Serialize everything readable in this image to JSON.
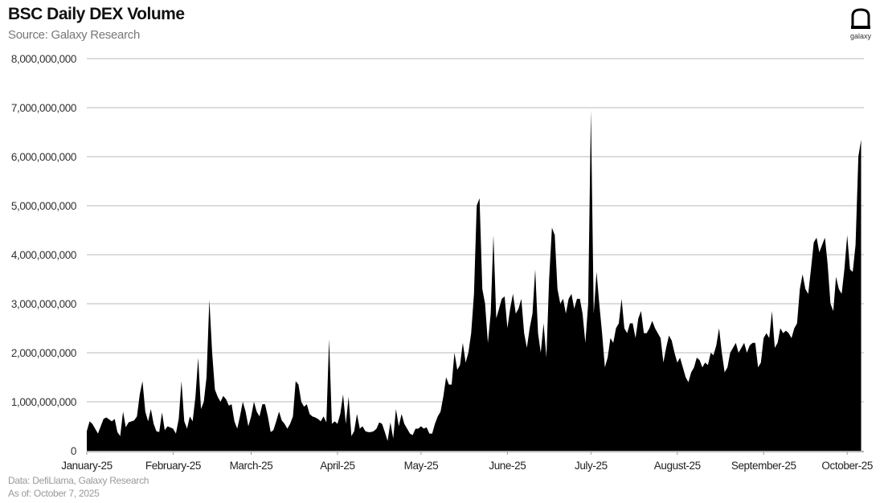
{
  "header": {
    "title": "BSC Daily DEX Volume",
    "subtitle": "Source: Galaxy Research"
  },
  "logo": {
    "text": "galaxy"
  },
  "footer": {
    "data_source": "Data: DefiLlama, Galaxy Research",
    "as_of": "As of: October 7, 2025"
  },
  "colors": {
    "fill": "#000000",
    "grid": "#c8c8c8",
    "axis": "#999999"
  },
  "chart_data": {
    "type": "area",
    "title": "BSC Daily DEX Volume",
    "subtitle": "Source: Galaxy Research",
    "xlabel": "",
    "ylabel": "",
    "ylim": [
      0,
      8000000000
    ],
    "yticks": [
      0,
      1000000000,
      2000000000,
      3000000000,
      4000000000,
      5000000000,
      6000000000,
      7000000000,
      8000000000
    ],
    "ytick_labels": [
      "0",
      "1,000,000,000",
      "2,000,000,000",
      "3,000,000,000",
      "4,000,000,000",
      "5,000,000,000",
      "6,000,000,000",
      "7,000,000,000",
      "8,000,000,000"
    ],
    "xtick_labels": [
      "January-25",
      "February-25",
      "March-25",
      "April-25",
      "May-25",
      "June-25",
      "July-25",
      "August-25",
      "September-25",
      "October-25"
    ],
    "xtick_day_index": [
      0,
      31,
      59,
      90,
      120,
      151,
      181,
      212,
      243,
      273
    ],
    "x_range_days": [
      0,
      279
    ],
    "grid": true,
    "legend": null,
    "series": [
      {
        "name": "BSC Daily DEX Volume",
        "points_day_value": [
          [
            0,
            400000000
          ],
          [
            1,
            600000000
          ],
          [
            2,
            550000000
          ],
          [
            4,
            350000000
          ],
          [
            6,
            650000000
          ],
          [
            7,
            680000000
          ],
          [
            9,
            600000000
          ],
          [
            10,
            650000000
          ],
          [
            11,
            380000000
          ],
          [
            12,
            300000000
          ],
          [
            13,
            800000000
          ],
          [
            14,
            480000000
          ],
          [
            15,
            580000000
          ],
          [
            17,
            620000000
          ],
          [
            18,
            700000000
          ],
          [
            19,
            1150000000
          ],
          [
            20,
            1420000000
          ],
          [
            21,
            800000000
          ],
          [
            22,
            600000000
          ],
          [
            23,
            850000000
          ],
          [
            24,
            550000000
          ],
          [
            25,
            400000000
          ],
          [
            26,
            380000000
          ],
          [
            27,
            780000000
          ],
          [
            28,
            420000000
          ],
          [
            29,
            500000000
          ],
          [
            31,
            450000000
          ],
          [
            32,
            350000000
          ],
          [
            33,
            650000000
          ],
          [
            34,
            1420000000
          ],
          [
            35,
            600000000
          ],
          [
            36,
            450000000
          ],
          [
            37,
            700000000
          ],
          [
            38,
            600000000
          ],
          [
            39,
            1100000000
          ],
          [
            40,
            1900000000
          ],
          [
            41,
            850000000
          ],
          [
            42,
            1000000000
          ],
          [
            43,
            1500000000
          ],
          [
            44,
            3080000000
          ],
          [
            45,
            2000000000
          ],
          [
            46,
            1250000000
          ],
          [
            47,
            1100000000
          ],
          [
            48,
            1000000000
          ],
          [
            49,
            1120000000
          ],
          [
            50,
            1050000000
          ],
          [
            51,
            920000000
          ],
          [
            52,
            950000000
          ],
          [
            53,
            600000000
          ],
          [
            54,
            450000000
          ],
          [
            55,
            700000000
          ],
          [
            56,
            1000000000
          ],
          [
            57,
            800000000
          ],
          [
            58,
            500000000
          ],
          [
            59,
            700000000
          ],
          [
            60,
            1000000000
          ],
          [
            61,
            800000000
          ],
          [
            62,
            700000000
          ],
          [
            63,
            950000000
          ],
          [
            64,
            950000000
          ],
          [
            65,
            700000000
          ],
          [
            66,
            380000000
          ],
          [
            67,
            420000000
          ],
          [
            68,
            600000000
          ],
          [
            69,
            800000000
          ],
          [
            70,
            620000000
          ],
          [
            71,
            550000000
          ],
          [
            72,
            450000000
          ],
          [
            73,
            550000000
          ],
          [
            74,
            700000000
          ],
          [
            75,
            1420000000
          ],
          [
            76,
            1350000000
          ],
          [
            77,
            1000000000
          ],
          [
            78,
            900000000
          ],
          [
            79,
            950000000
          ],
          [
            80,
            750000000
          ],
          [
            81,
            700000000
          ],
          [
            82,
            680000000
          ],
          [
            83,
            650000000
          ],
          [
            84,
            600000000
          ],
          [
            85,
            700000000
          ],
          [
            86,
            580000000
          ],
          [
            87,
            2280000000
          ],
          [
            88,
            550000000
          ],
          [
            89,
            600000000
          ],
          [
            90,
            550000000
          ],
          [
            91,
            750000000
          ],
          [
            92,
            1150000000
          ],
          [
            93,
            550000000
          ],
          [
            94,
            1100000000
          ],
          [
            95,
            300000000
          ],
          [
            96,
            400000000
          ],
          [
            97,
            750000000
          ],
          [
            98,
            450000000
          ],
          [
            99,
            500000000
          ],
          [
            100,
            400000000
          ],
          [
            101,
            380000000
          ],
          [
            102,
            380000000
          ],
          [
            103,
            400000000
          ],
          [
            104,
            450000000
          ],
          [
            105,
            580000000
          ],
          [
            106,
            550000000
          ],
          [
            107,
            380000000
          ],
          [
            108,
            200000000
          ],
          [
            109,
            580000000
          ],
          [
            110,
            250000000
          ],
          [
            111,
            850000000
          ],
          [
            112,
            500000000
          ],
          [
            113,
            750000000
          ],
          [
            114,
            550000000
          ],
          [
            115,
            450000000
          ],
          [
            116,
            350000000
          ],
          [
            117,
            320000000
          ],
          [
            118,
            450000000
          ],
          [
            119,
            450000000
          ],
          [
            120,
            500000000
          ],
          [
            121,
            450000000
          ],
          [
            122,
            480000000
          ],
          [
            123,
            350000000
          ],
          [
            124,
            350000000
          ],
          [
            125,
            550000000
          ],
          [
            126,
            700000000
          ],
          [
            127,
            800000000
          ],
          [
            128,
            1100000000
          ],
          [
            129,
            1500000000
          ],
          [
            130,
            1350000000
          ],
          [
            131,
            1350000000
          ],
          [
            132,
            2000000000
          ],
          [
            133,
            1650000000
          ],
          [
            134,
            1750000000
          ],
          [
            135,
            2200000000
          ],
          [
            136,
            1800000000
          ],
          [
            137,
            2000000000
          ],
          [
            138,
            2400000000
          ],
          [
            139,
            3200000000
          ],
          [
            140,
            5000000000
          ],
          [
            141,
            5150000000
          ],
          [
            142,
            3300000000
          ],
          [
            143,
            3000000000
          ],
          [
            144,
            2200000000
          ],
          [
            145,
            2800000000
          ],
          [
            146,
            4400000000
          ],
          [
            147,
            2700000000
          ],
          [
            148,
            2900000000
          ],
          [
            149,
            3100000000
          ],
          [
            150,
            3150000000
          ],
          [
            151,
            2500000000
          ],
          [
            152,
            2900000000
          ],
          [
            153,
            3200000000
          ],
          [
            154,
            2800000000
          ],
          [
            155,
            2900000000
          ],
          [
            156,
            3100000000
          ],
          [
            157,
            2400000000
          ],
          [
            158,
            2100000000
          ],
          [
            159,
            2500000000
          ],
          [
            160,
            2800000000
          ],
          [
            161,
            3700000000
          ],
          [
            162,
            2400000000
          ],
          [
            163,
            2000000000
          ],
          [
            164,
            2600000000
          ],
          [
            165,
            1900000000
          ],
          [
            166,
            3500000000
          ],
          [
            167,
            4550000000
          ],
          [
            168,
            4400000000
          ],
          [
            169,
            3300000000
          ],
          [
            170,
            3000000000
          ],
          [
            171,
            3100000000
          ],
          [
            172,
            2800000000
          ],
          [
            173,
            3100000000
          ],
          [
            174,
            3200000000
          ],
          [
            175,
            2900000000
          ],
          [
            176,
            3100000000
          ],
          [
            177,
            3100000000
          ],
          [
            178,
            2800000000
          ],
          [
            179,
            2200000000
          ],
          [
            180,
            3000000000
          ],
          [
            181,
            6950000000
          ],
          [
            182,
            2800000000
          ],
          [
            183,
            3650000000
          ],
          [
            184,
            3000000000
          ],
          [
            185,
            2400000000
          ],
          [
            186,
            1700000000
          ],
          [
            187,
            1900000000
          ],
          [
            188,
            2300000000
          ],
          [
            189,
            2200000000
          ],
          [
            190,
            2500000000
          ],
          [
            191,
            2600000000
          ],
          [
            192,
            3100000000
          ],
          [
            193,
            2500000000
          ],
          [
            194,
            2400000000
          ],
          [
            195,
            2600000000
          ],
          [
            196,
            2600000000
          ],
          [
            197,
            2300000000
          ],
          [
            198,
            2700000000
          ],
          [
            199,
            2850000000
          ],
          [
            200,
            2400000000
          ],
          [
            201,
            2400000000
          ],
          [
            202,
            2500000000
          ],
          [
            203,
            2650000000
          ],
          [
            204,
            2500000000
          ],
          [
            205,
            2400000000
          ],
          [
            206,
            2300000000
          ],
          [
            207,
            1800000000
          ],
          [
            208,
            2100000000
          ],
          [
            209,
            2350000000
          ],
          [
            210,
            2250000000
          ],
          [
            211,
            2000000000
          ],
          [
            212,
            1800000000
          ],
          [
            213,
            1900000000
          ],
          [
            214,
            1700000000
          ],
          [
            215,
            1500000000
          ],
          [
            216,
            1400000000
          ],
          [
            217,
            1600000000
          ],
          [
            218,
            1700000000
          ],
          [
            219,
            1900000000
          ],
          [
            220,
            1850000000
          ],
          [
            221,
            1700000000
          ],
          [
            222,
            1800000000
          ],
          [
            223,
            1750000000
          ],
          [
            224,
            2000000000
          ],
          [
            225,
            1950000000
          ],
          [
            226,
            2150000000
          ],
          [
            227,
            2500000000
          ],
          [
            228,
            2000000000
          ],
          [
            229,
            1600000000
          ],
          [
            230,
            1700000000
          ],
          [
            231,
            2000000000
          ],
          [
            232,
            2100000000
          ],
          [
            233,
            2200000000
          ],
          [
            234,
            2000000000
          ],
          [
            235,
            2100000000
          ],
          [
            236,
            2200000000
          ],
          [
            237,
            2000000000
          ],
          [
            238,
            2150000000
          ],
          [
            239,
            2200000000
          ],
          [
            240,
            2200000000
          ],
          [
            241,
            1700000000
          ],
          [
            242,
            1800000000
          ],
          [
            243,
            2300000000
          ],
          [
            244,
            2400000000
          ],
          [
            245,
            2300000000
          ],
          [
            246,
            2850000000
          ],
          [
            247,
            2100000000
          ],
          [
            248,
            2200000000
          ],
          [
            249,
            2500000000
          ],
          [
            250,
            2400000000
          ],
          [
            251,
            2450000000
          ],
          [
            252,
            2400000000
          ],
          [
            253,
            2300000000
          ],
          [
            254,
            2500000000
          ],
          [
            255,
            2600000000
          ],
          [
            256,
            3300000000
          ],
          [
            257,
            3600000000
          ],
          [
            258,
            3300000000
          ],
          [
            259,
            3200000000
          ],
          [
            260,
            3700000000
          ],
          [
            261,
            4250000000
          ],
          [
            262,
            4350000000
          ],
          [
            263,
            4050000000
          ],
          [
            264,
            4200000000
          ],
          [
            265,
            4350000000
          ],
          [
            266,
            3800000000
          ],
          [
            267,
            3000000000
          ],
          [
            268,
            2850000000
          ],
          [
            269,
            3550000000
          ],
          [
            270,
            3300000000
          ],
          [
            271,
            3200000000
          ],
          [
            272,
            3700000000
          ],
          [
            273,
            4400000000
          ],
          [
            274,
            3700000000
          ],
          [
            275,
            3650000000
          ],
          [
            276,
            4200000000
          ],
          [
            277,
            6000000000
          ],
          [
            278,
            6350000000
          ]
        ]
      }
    ]
  }
}
